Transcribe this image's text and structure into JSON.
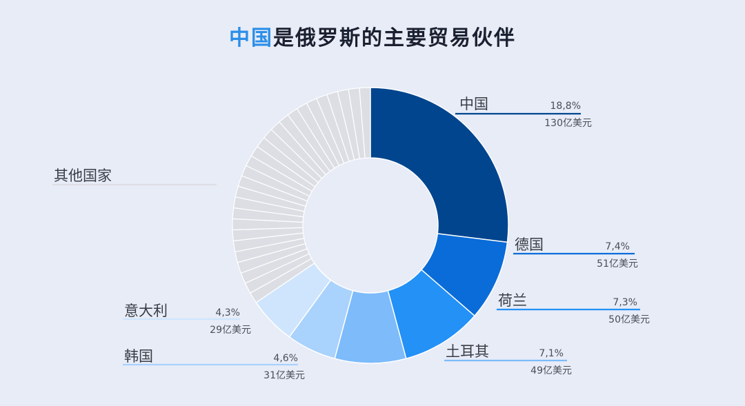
{
  "title": {
    "highlight": "中国",
    "rest": "是俄罗斯的主要贸易伙伴"
  },
  "colors": {
    "china": "#01458e",
    "germany": "#0a6cd8",
    "netherlands": "#2391f6",
    "turkey": "#7dbbfb",
    "korea": "#a9d2fc",
    "italy": "#cfe5fd",
    "others": "#dcdee4",
    "separator": "#ffffff"
  },
  "chart_data": {
    "type": "pie",
    "donut": true,
    "title": "中国是俄罗斯的主要贸易伙伴",
    "slices": [
      {
        "name": "中国",
        "percent": "18,8%",
        "amount": "130亿美元",
        "value": 18.8,
        "color": "#01458e"
      },
      {
        "name": "德国",
        "percent": "7,4%",
        "amount": "51亿美元",
        "value": 7.4,
        "color": "#0a6cd8"
      },
      {
        "name": "荷兰",
        "percent": "7,3%",
        "amount": "50亿美元",
        "value": 7.3,
        "color": "#2391f6"
      },
      {
        "name": "土耳其",
        "percent": "7,1%",
        "amount": "49亿美元",
        "value": 7.1,
        "color": "#7dbbfb"
      },
      {
        "name": "韩国",
        "percent": "4,6%",
        "amount": "31亿美元",
        "value": 4.6,
        "color": "#a9d2fc"
      },
      {
        "name": "意大利",
        "percent": "4,3%",
        "amount": "29亿美元",
        "value": 4.3,
        "color": "#cfe5fd"
      },
      {
        "name": "其他国家",
        "percent": "",
        "amount": "",
        "value": 50.5,
        "color": "#dcdee4"
      }
    ]
  }
}
